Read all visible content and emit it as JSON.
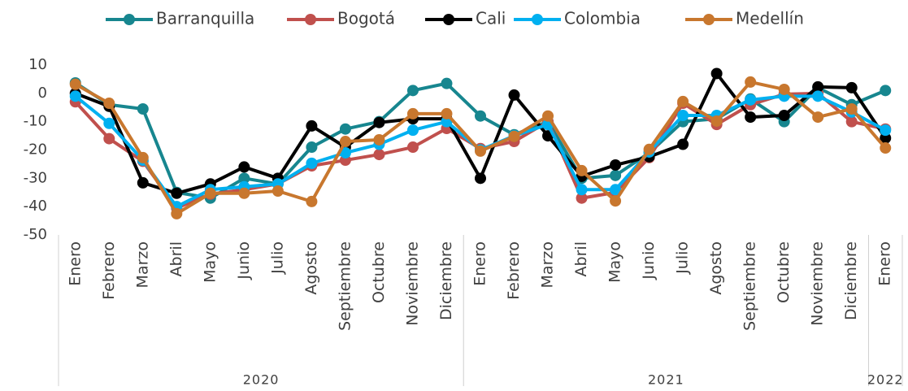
{
  "chart_data": {
    "type": "line",
    "groups": [
      {
        "label": "2020",
        "categories": [
          "Enero",
          "Febrero",
          "Marzo",
          "Abril",
          "Mayo",
          "Junio",
          "Julio",
          "Agosto",
          "Septiembre",
          "Octubre",
          "Noviembre",
          "Diciembre"
        ]
      },
      {
        "label": "2021",
        "categories": [
          "Enero",
          "Febrero",
          "Marzo",
          "Abril",
          "Mayo",
          "Junio",
          "Julio",
          "Agosto",
          "Septiembre",
          "Octubre",
          "Noviembre",
          "Diciembre"
        ]
      },
      {
        "label": "2022",
        "categories": [
          "Enero"
        ]
      }
    ],
    "series": [
      {
        "name": "Barranquilla",
        "color": "#17868f",
        "values": [
          3.7,
          -4,
          -5.5,
          -35,
          -37,
          -30,
          -32,
          -19,
          -12.6,
          -10,
          1,
          3.5,
          -8,
          -14.6,
          -10,
          -30,
          -29,
          -21,
          -10,
          -9,
          -2,
          -10,
          2,
          -4,
          1
        ]
      },
      {
        "name": "Bogotá",
        "color": "#c0504d",
        "values": [
          -3,
          -16,
          -24,
          -40.5,
          -35.6,
          -34,
          -32,
          -25.6,
          -23.6,
          -21.6,
          -19,
          -12.4,
          -19.5,
          -17,
          -10,
          -37,
          -35,
          -22.7,
          -3.5,
          -11,
          -4,
          -0.3,
          0,
          -10,
          -12.6
        ]
      },
      {
        "name": "Cali",
        "color": "#000000",
        "values": [
          0,
          -4.6,
          -31.6,
          -35.3,
          -32,
          -26,
          -30,
          -11.5,
          -19,
          -10.3,
          -9,
          -9,
          -30,
          -0.6,
          -15,
          -29.3,
          -25.3,
          -22.4,
          -18,
          7,
          -8.4,
          -7.8,
          2.3,
          2,
          -15.8
        ]
      },
      {
        "name": "Colombia",
        "color": "#00b0f0",
        "values": [
          -1,
          -10.6,
          -23.6,
          -40,
          -34,
          -33,
          -32,
          -24.7,
          -21,
          -18,
          -13,
          -10,
          -20,
          -15,
          -11,
          -34,
          -34,
          -20.7,
          -7.8,
          -7.8,
          -2.3,
          -1,
          -1,
          -6.6,
          -13
        ]
      },
      {
        "name": "Medellín",
        "color": "#c8772e",
        "values": [
          3.2,
          -3.5,
          -22.7,
          -42.5,
          -35.3,
          -35.3,
          -34.5,
          -38.2,
          -17,
          -16.4,
          -7.2,
          -7.2,
          -20.4,
          -15.2,
          -8,
          -27.3,
          -38,
          -19.8,
          -2.9,
          -9.8,
          4,
          1.4,
          -8.4,
          -5.5,
          -19.3
        ]
      }
    ],
    "ylim": [
      -50,
      10
    ],
    "yticks": [
      -50,
      -40,
      -30,
      -20,
      -10,
      0,
      10
    ],
    "legend": "top"
  }
}
